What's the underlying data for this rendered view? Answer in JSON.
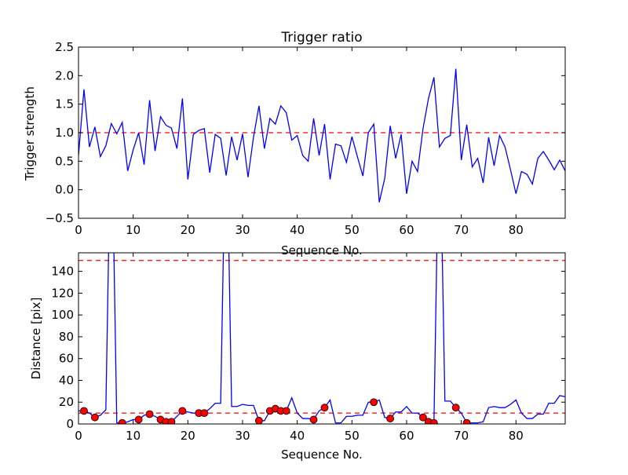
{
  "chart_data": [
    {
      "type": "line",
      "title": "Trigger ratio",
      "xlabel": "Sequence No.",
      "ylabel": "Trigger strength",
      "xlim": [
        0,
        89
      ],
      "ylim": [
        -0.5,
        2.5
      ],
      "xticks": [
        0,
        10,
        20,
        30,
        40,
        50,
        60,
        70,
        80
      ],
      "yticks": [
        -0.5,
        0.0,
        0.5,
        1.0,
        1.5,
        2.0,
        2.5
      ],
      "ytick_labels": [
        "−0.5",
        "0.0",
        "0.5",
        "1.0",
        "1.5",
        "2.0",
        "2.5"
      ],
      "threshold": 1.0,
      "line_color": "#0000ff",
      "threshold_color": "#ff0000",
      "values": [
        0.6,
        1.76,
        0.75,
        1.1,
        0.58,
        0.77,
        1.16,
        0.98,
        1.18,
        0.33,
        0.7,
        1.0,
        0.44,
        1.57,
        0.68,
        1.28,
        1.13,
        1.08,
        0.72,
        1.6,
        0.18,
        0.97,
        1.04,
        1.07,
        0.3,
        0.97,
        0.9,
        0.25,
        0.93,
        0.52,
        0.98,
        0.22,
        0.92,
        1.47,
        0.72,
        1.25,
        1.15,
        1.47,
        1.35,
        0.87,
        0.95,
        0.6,
        0.5,
        1.25,
        0.6,
        1.15,
        0.18,
        0.8,
        0.77,
        0.48,
        0.93,
        0.58,
        0.24,
        1.0,
        1.15,
        -0.22,
        0.2,
        1.12,
        0.55,
        0.97,
        -0.07,
        0.5,
        0.32,
        1.07,
        1.6,
        1.97,
        0.75,
        0.9,
        0.95,
        2.12,
        0.52,
        1.14,
        0.4,
        0.55,
        0.12,
        0.92,
        0.42,
        0.95,
        0.75,
        0.35,
        -0.07,
        0.32,
        0.27,
        0.1,
        0.55,
        0.67,
        0.52,
        0.35,
        0.52,
        0.33
      ]
    },
    {
      "type": "line",
      "title": "",
      "xlabel": "Sequence No.",
      "ylabel": "Distance [pix]",
      "xlim": [
        0,
        89
      ],
      "ylim": [
        0,
        157
      ],
      "xticks": [
        0,
        10,
        20,
        30,
        40,
        50,
        60,
        70,
        80
      ],
      "yticks": [
        0,
        20,
        40,
        60,
        80,
        100,
        120,
        140
      ],
      "ytick_labels": [
        "0",
        "20",
        "40",
        "60",
        "80",
        "100",
        "120",
        "140"
      ],
      "thresholds": [
        10,
        150
      ],
      "line_color": "#0000ff",
      "marker_color": "#ff0000",
      "values": [
        12,
        12,
        10,
        6,
        8,
        13,
        300,
        1,
        1,
        2,
        4,
        4,
        8,
        9,
        7,
        4,
        2,
        2,
        7,
        12,
        11,
        10,
        10,
        10,
        14,
        19,
        19,
        300,
        16,
        16,
        18,
        17,
        17,
        3,
        3,
        12,
        14,
        12,
        12,
        24,
        10,
        5,
        5,
        4,
        12,
        15,
        22,
        1,
        1,
        7,
        7,
        8,
        8,
        20,
        20,
        22,
        6,
        5,
        11,
        11,
        16,
        10,
        10,
        6,
        2,
        1,
        300,
        21,
        21,
        15,
        10,
        1,
        1,
        1,
        2,
        15,
        16,
        15,
        15,
        18,
        22,
        10,
        5,
        5,
        9,
        9,
        19,
        19,
        26,
        25
      ],
      "marked_indices": [
        1,
        3,
        8,
        11,
        13,
        15,
        16,
        17,
        19,
        22,
        23,
        33,
        35,
        36,
        37,
        38,
        43,
        45,
        54,
        57,
        63,
        64,
        65,
        69,
        71
      ]
    }
  ]
}
